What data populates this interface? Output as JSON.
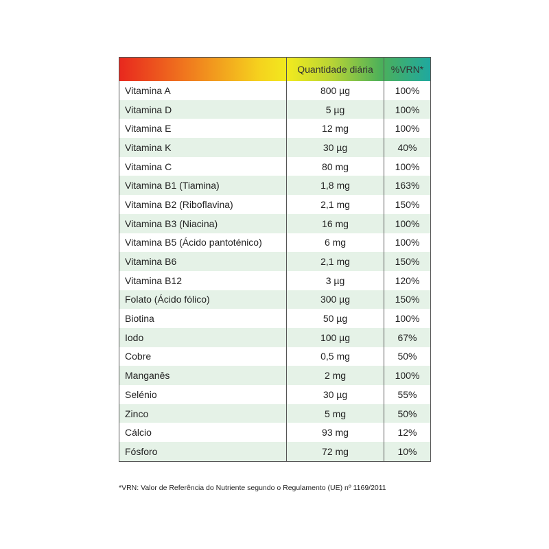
{
  "table": {
    "header": [
      "Quantidade diária",
      "%VRN*"
    ],
    "rows": [
      [
        "Vitamina A",
        "800 µg",
        "100%"
      ],
      [
        "Vitamina D",
        "5 µg",
        "100%"
      ],
      [
        "Vitamina E",
        "12 mg",
        "100%"
      ],
      [
        "Vitamina K",
        "30 µg",
        "40%"
      ],
      [
        "Vitamina C",
        "80 mg",
        "100%"
      ],
      [
        "Vitamina B1 (Tiamina)",
        "1,8 mg",
        "163%"
      ],
      [
        "Vitamina B2 (Riboflavina)",
        "2,1 mg",
        "150%"
      ],
      [
        "Vitamina B3 (Niacina)",
        "16 mg",
        "100%"
      ],
      [
        "Vitamina B5 (Ácido pantoténico)",
        "6 mg",
        "100%"
      ],
      [
        "Vitamina B6",
        "2,1 mg",
        "150%"
      ],
      [
        "Vitamina B12",
        "3 µg",
        "120%"
      ],
      [
        "Folato (Ácido fólico)",
        "300 µg",
        "150%"
      ],
      [
        "Biotina",
        "50 µg",
        "100%"
      ],
      [
        "Iodo",
        "100 µg",
        "67%"
      ],
      [
        "Cobre",
        "0,5 mg",
        "50%"
      ],
      [
        "Manganês",
        "2 mg",
        "100%"
      ],
      [
        "Selénio",
        "30 µg",
        "55%"
      ],
      [
        "Zinco",
        "5 mg",
        "50%"
      ],
      [
        "Cálcio",
        "93 mg",
        "12%"
      ],
      [
        "Fósforo",
        "72 mg",
        "10%"
      ]
    ]
  },
  "footnote": "*VRN: Valor de Referência do Nutriente segundo o Regulamento (UE) nº 1169/2011"
}
